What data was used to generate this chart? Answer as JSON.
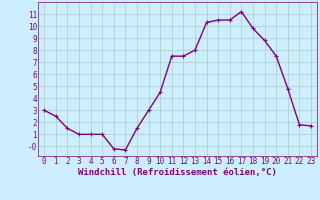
{
  "x": [
    0,
    1,
    2,
    3,
    4,
    5,
    6,
    7,
    8,
    9,
    10,
    11,
    12,
    13,
    14,
    15,
    16,
    17,
    18,
    19,
    20,
    21,
    22,
    23
  ],
  "y": [
    3.0,
    2.5,
    1.5,
    1.0,
    1.0,
    1.0,
    -0.2,
    -0.3,
    1.5,
    3.0,
    4.5,
    7.5,
    7.5,
    8.0,
    10.3,
    10.5,
    10.5,
    11.2,
    9.8,
    8.8,
    7.5,
    4.8,
    1.8,
    1.7
  ],
  "line_color": "#800080",
  "marker": "+",
  "marker_size": 3,
  "linewidth": 1.0,
  "bg_color": "#cceeff",
  "grid_color": "#aaccbb",
  "xlabel": "Windchill (Refroidissement éolien,°C)",
  "xlabel_fontsize": 6.5,
  "ylabel_ticks": [
    0,
    1,
    2,
    3,
    4,
    5,
    6,
    7,
    8,
    9,
    10,
    11
  ],
  "ylim": [
    -0.8,
    12.0
  ],
  "xlim": [
    -0.5,
    23.5
  ],
  "tick_fontsize": 5.5,
  "title": ""
}
